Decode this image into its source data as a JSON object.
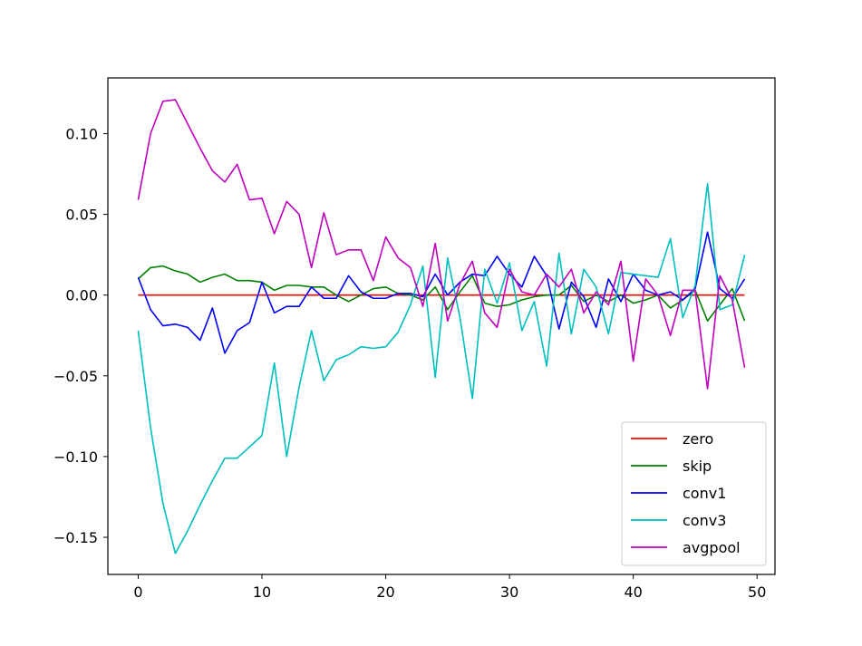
{
  "chart_data": {
    "type": "line",
    "title": "",
    "xlabel": "",
    "ylabel": "",
    "xlim": [
      -2.45,
      51.45
    ],
    "ylim": [
      -0.173,
      0.1345
    ],
    "grid": false,
    "legend_position": "lower-right",
    "x_ticks": [
      {
        "value": 0,
        "label": "0"
      },
      {
        "value": 10,
        "label": "10"
      },
      {
        "value": 20,
        "label": "20"
      },
      {
        "value": 30,
        "label": "30"
      },
      {
        "value": 40,
        "label": "40"
      },
      {
        "value": 50,
        "label": "50"
      }
    ],
    "y_ticks": [
      {
        "value": 0.1,
        "label": "0.10"
      },
      {
        "value": 0.05,
        "label": "0.05"
      },
      {
        "value": 0.0,
        "label": "0.00"
      },
      {
        "value": -0.05,
        "label": "−0.05"
      },
      {
        "value": -0.1,
        "label": "−0.10"
      },
      {
        "value": -0.15,
        "label": "−0.15"
      }
    ],
    "x": [
      0,
      1,
      2,
      3,
      4,
      5,
      6,
      7,
      8,
      9,
      10,
      11,
      12,
      13,
      14,
      15,
      16,
      17,
      18,
      19,
      20,
      21,
      22,
      23,
      24,
      25,
      26,
      27,
      28,
      29,
      30,
      31,
      32,
      33,
      34,
      35,
      36,
      37,
      38,
      39,
      40,
      41,
      42,
      43,
      44,
      45,
      46,
      47,
      48,
      49
    ],
    "series": [
      {
        "name": "zero",
        "color": "#ff0000",
        "values": [
          0,
          0,
          0,
          0,
          0,
          0,
          0,
          0,
          0,
          0,
          0,
          0,
          0,
          0,
          0,
          0,
          0,
          0,
          0,
          0,
          0,
          0,
          0,
          0,
          0,
          0,
          0,
          0,
          0,
          0,
          0,
          0,
          0,
          0,
          0,
          0,
          0,
          0,
          0,
          0,
          0,
          0,
          0,
          0,
          0,
          0,
          0,
          0,
          0,
          0
        ]
      },
      {
        "name": "skip",
        "color": "#008000",
        "values": [
          0.01,
          0.017,
          0.018,
          0.015,
          0.013,
          0.008,
          0.011,
          0.013,
          0.009,
          0.009,
          0.008,
          0.003,
          0.006,
          0.006,
          0.005,
          0.005,
          0.0,
          -0.004,
          0.0,
          0.004,
          0.005,
          0.001,
          0.0,
          -0.003,
          0.005,
          -0.009,
          0.002,
          0.012,
          -0.005,
          -0.007,
          -0.006,
          -0.003,
          -0.001,
          0.0,
          0.0,
          0.006,
          -0.004,
          0.0,
          -0.004,
          0.0,
          -0.005,
          -0.003,
          0.0,
          -0.008,
          -0.003,
          0.003,
          -0.016,
          -0.006,
          0.004,
          -0.016
        ]
      },
      {
        "name": "conv1",
        "color": "#0000ff",
        "values": [
          0.011,
          -0.009,
          -0.019,
          -0.018,
          -0.02,
          -0.028,
          -0.008,
          -0.036,
          -0.022,
          -0.017,
          0.008,
          -0.011,
          -0.007,
          -0.007,
          0.005,
          -0.002,
          -0.002,
          0.012,
          0.002,
          -0.002,
          -0.002,
          0.001,
          0.001,
          -0.001,
          0.013,
          0.0,
          0.008,
          0.013,
          0.012,
          0.024,
          0.013,
          0.005,
          0.024,
          0.012,
          -0.021,
          0.008,
          -0.001,
          -0.02,
          0.01,
          -0.004,
          0.013,
          0.003,
          0.0,
          0.002,
          -0.003,
          0.004,
          0.039,
          0.004,
          -0.002,
          0.01
        ]
      },
      {
        "name": "conv3",
        "color": "#00bfbf",
        "values": [
          -0.022,
          -0.082,
          -0.129,
          -0.16,
          -0.146,
          -0.13,
          -0.115,
          -0.101,
          -0.101,
          -0.094,
          -0.087,
          -0.042,
          -0.1,
          -0.057,
          -0.022,
          -0.053,
          -0.04,
          -0.037,
          -0.032,
          -0.033,
          -0.032,
          -0.023,
          -0.006,
          0.018,
          -0.051,
          0.023,
          -0.014,
          -0.064,
          0.016,
          -0.005,
          0.02,
          -0.022,
          -0.004,
          -0.044,
          0.026,
          -0.024,
          0.016,
          0.005,
          -0.024,
          0.014,
          0.013,
          0.012,
          0.011,
          0.035,
          -0.014,
          0.006,
          0.069,
          -0.009,
          -0.006,
          0.025
        ]
      },
      {
        "name": "avgpool",
        "color": "#bf00bf",
        "values": [
          0.059,
          0.1,
          0.12,
          0.121,
          0.106,
          0.091,
          0.077,
          0.07,
          0.081,
          0.059,
          0.06,
          0.038,
          0.058,
          0.05,
          0.017,
          0.051,
          0.025,
          0.028,
          0.028,
          0.009,
          0.036,
          0.023,
          0.017,
          -0.007,
          0.032,
          -0.016,
          0.007,
          0.021,
          -0.011,
          -0.02,
          0.016,
          0.002,
          0.0,
          0.013,
          0.005,
          0.016,
          -0.011,
          0.002,
          -0.006,
          0.021,
          -0.041,
          0.01,
          0.0,
          -0.025,
          0.003,
          0.003,
          -0.058,
          0.012,
          -0.003,
          -0.045
        ]
      }
    ]
  }
}
